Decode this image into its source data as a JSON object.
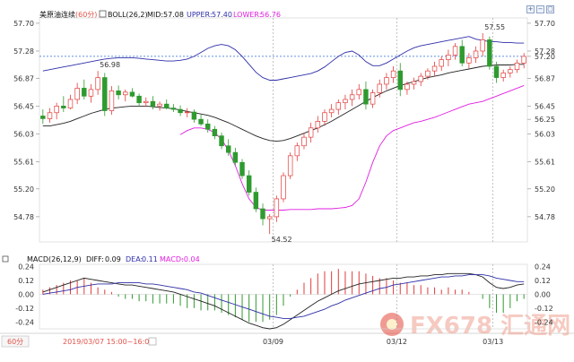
{
  "header": {
    "symbol": "美原油连续",
    "period": "(60分)",
    "indicator": "BOLL(26,2)",
    "mid_label": "MID:",
    "mid_value": "57.08",
    "upper_label": "UPPER:",
    "upper_value": "57.40",
    "lower_label": "LOWER:",
    "lower_value": "56.76"
  },
  "toolbar": {
    "buttons": [
      "+",
      "−",
      "▢"
    ]
  },
  "macd_header": {
    "name": "MACD(26,12,9)",
    "diff_label": "DIFF:",
    "diff_value": "0.09",
    "dea_label": "DEA:",
    "dea_value": "0.11",
    "macd_label": "MACD:",
    "macd_value": "-0.04"
  },
  "footer": {
    "period_tab": "60分",
    "crosshair_time": "2019/03/07 15:00~16:00",
    "dates": [
      "03/09",
      "03/12",
      "03/13"
    ]
  },
  "watermark": "FX678 汇通网",
  "colors": {
    "up": "#e33b3b",
    "down": "#2f9a2f",
    "mid": "#222222",
    "upper": "#2e2ea8",
    "lower": "#e01ee0",
    "diff": "#222222",
    "dea": "#2e2ea8",
    "accent": "#e2534a"
  },
  "chart_data": [
    {
      "type": "candlestick",
      "title": "美原油连续 (60分) BOLL(26,2)",
      "ylim": [
        54.4,
        57.78
      ],
      "y_ticks": [
        "57.70",
        "57.28",
        "56.87",
        "56.45",
        "56.03",
        "55.61",
        "55.20",
        "54.78"
      ],
      "right_labels": [
        "57.70",
        "57.28",
        "57.20",
        "56.87",
        "56.45",
        "56.25",
        "56.03",
        "55.61",
        "55.20",
        "54.78"
      ],
      "last_price": "57.20",
      "last_lower": "56.25",
      "annotations": [
        {
          "text": "56.98",
          "kind": "high"
        },
        {
          "text": "54.52",
          "kind": "low"
        },
        {
          "text": "57.55",
          "kind": "high"
        }
      ],
      "dates": [
        "03/09",
        "03/12",
        "03/13"
      ],
      "candles": [
        [
          56.3,
          56.4,
          56.18,
          56.26
        ],
        [
          56.26,
          56.42,
          56.2,
          56.35
        ],
        [
          56.35,
          56.5,
          56.25,
          56.45
        ],
        [
          56.45,
          56.6,
          56.36,
          56.42
        ],
        [
          56.42,
          56.62,
          56.4,
          56.55
        ],
        [
          56.55,
          56.8,
          56.48,
          56.72
        ],
        [
          56.72,
          56.85,
          56.55,
          56.6
        ],
        [
          56.6,
          56.78,
          56.5,
          56.7
        ],
        [
          56.7,
          56.98,
          56.62,
          56.88
        ],
        [
          56.88,
          56.95,
          56.3,
          56.38
        ],
        [
          56.38,
          56.75,
          56.32,
          56.68
        ],
        [
          56.68,
          56.76,
          56.55,
          56.62
        ],
        [
          56.62,
          56.7,
          56.52,
          56.66
        ],
        [
          56.66,
          56.72,
          56.58,
          56.6
        ],
        [
          56.6,
          56.64,
          56.45,
          56.5
        ],
        [
          56.5,
          56.58,
          56.44,
          56.52
        ],
        [
          56.52,
          56.6,
          56.4,
          56.45
        ],
        [
          56.45,
          56.52,
          56.38,
          56.48
        ],
        [
          56.48,
          56.55,
          56.4,
          56.42
        ],
        [
          56.42,
          56.48,
          56.36,
          56.4
        ],
        [
          56.4,
          56.46,
          56.3,
          56.35
        ],
        [
          56.35,
          56.42,
          56.28,
          56.36
        ],
        [
          56.36,
          56.4,
          56.2,
          56.25
        ],
        [
          56.25,
          56.32,
          56.15,
          56.18
        ],
        [
          56.18,
          56.25,
          56.05,
          56.1
        ],
        [
          56.1,
          56.15,
          55.95,
          56.0
        ],
        [
          56.0,
          56.05,
          55.8,
          55.85
        ],
        [
          55.85,
          55.95,
          55.7,
          55.75
        ],
        [
          55.75,
          55.82,
          55.55,
          55.6
        ],
        [
          55.6,
          55.65,
          55.35,
          55.4
        ],
        [
          55.4,
          55.48,
          55.1,
          55.15
        ],
        [
          55.15,
          55.22,
          54.85,
          54.9
        ],
        [
          54.9,
          54.98,
          54.65,
          54.75
        ],
        [
          54.75,
          54.82,
          54.52,
          54.78
        ],
        [
          54.78,
          55.1,
          54.7,
          55.05
        ],
        [
          55.05,
          55.45,
          55.0,
          55.4
        ],
        [
          55.4,
          55.75,
          55.35,
          55.7
        ],
        [
          55.7,
          55.9,
          55.62,
          55.85
        ],
        [
          55.85,
          56.05,
          55.8,
          55.98
        ],
        [
          55.98,
          56.2,
          55.9,
          56.12
        ],
        [
          56.12,
          56.3,
          56.05,
          56.22
        ],
        [
          56.22,
          56.4,
          56.15,
          56.35
        ],
        [
          56.35,
          56.48,
          56.28,
          56.4
        ],
        [
          56.4,
          56.55,
          56.32,
          56.5
        ],
        [
          56.5,
          56.62,
          56.4,
          56.55
        ],
        [
          56.55,
          56.7,
          56.45,
          56.62
        ],
        [
          56.62,
          56.78,
          56.55,
          56.7
        ],
        [
          56.7,
          56.82,
          56.4,
          56.48
        ],
        [
          56.48,
          56.7,
          56.42,
          56.65
        ],
        [
          56.65,
          56.85,
          56.58,
          56.78
        ],
        [
          56.78,
          56.95,
          56.7,
          56.88
        ],
        [
          56.88,
          57.05,
          56.8,
          56.98
        ],
        [
          56.98,
          57.1,
          56.6,
          56.7
        ],
        [
          56.7,
          56.82,
          56.62,
          56.78
        ],
        [
          56.78,
          56.88,
          56.7,
          56.82
        ],
        [
          56.82,
          56.95,
          56.75,
          56.9
        ],
        [
          56.9,
          57.02,
          56.85,
          56.98
        ],
        [
          56.98,
          57.12,
          56.9,
          57.05
        ],
        [
          57.05,
          57.2,
          56.98,
          57.15
        ],
        [
          57.15,
          57.3,
          57.05,
          57.22
        ],
        [
          57.22,
          57.4,
          57.15,
          57.35
        ],
        [
          57.35,
          57.45,
          57.05,
          57.1
        ],
        [
          57.1,
          57.25,
          57.02,
          57.18
        ],
        [
          57.18,
          57.35,
          57.1,
          57.28
        ],
        [
          57.28,
          57.55,
          57.2,
          57.45
        ],
        [
          57.45,
          57.5,
          57.0,
          57.05
        ],
        [
          57.05,
          57.12,
          56.8,
          56.88
        ],
        [
          56.88,
          57.0,
          56.82,
          56.95
        ],
        [
          56.95,
          57.05,
          56.88,
          57.0
        ],
        [
          57.0,
          57.15,
          56.95,
          57.1
        ],
        [
          57.1,
          57.25,
          57.02,
          57.2
        ]
      ],
      "mid_line": [
        56.15,
        56.15,
        56.17,
        56.19,
        56.22,
        56.26,
        56.3,
        56.34,
        56.37,
        56.4,
        56.42,
        56.43,
        56.44,
        56.45,
        56.45,
        56.45,
        56.44,
        56.43,
        56.42,
        56.41,
        56.39,
        56.37,
        56.35,
        56.33,
        56.31,
        56.28,
        56.24,
        56.2,
        56.15,
        56.1,
        56.05,
        56.0,
        55.96,
        55.93,
        55.92,
        55.93,
        55.96,
        56.0,
        56.04,
        56.08,
        56.12,
        56.17,
        56.22,
        56.28,
        56.34,
        56.4,
        56.46,
        56.52,
        56.58,
        56.63,
        56.68,
        56.72,
        56.76,
        56.79,
        56.82,
        56.85,
        56.88,
        56.9,
        56.92,
        56.95,
        56.97,
        56.99,
        57.01,
        57.03,
        57.05,
        57.06,
        57.07,
        57.07,
        57.07,
        57.08,
        57.08
      ],
      "upper_line": [
        56.98,
        57.0,
        57.02,
        57.04,
        57.06,
        57.08,
        57.1,
        57.12,
        57.14,
        57.16,
        57.17,
        57.18,
        57.18,
        57.18,
        57.17,
        57.16,
        57.15,
        57.14,
        57.13,
        57.13,
        57.14,
        57.16,
        57.2,
        57.26,
        57.32,
        57.36,
        57.38,
        57.36,
        57.3,
        57.2,
        57.08,
        56.96,
        56.88,
        56.84,
        56.84,
        56.86,
        56.88,
        56.9,
        56.92,
        56.94,
        56.98,
        57.04,
        57.12,
        57.2,
        57.26,
        57.28,
        57.22,
        57.12,
        57.06,
        57.06,
        57.1,
        57.16,
        57.22,
        57.28,
        57.33,
        57.36,
        57.38,
        57.4,
        57.42,
        57.44,
        57.46,
        57.48,
        57.5,
        57.46,
        57.44,
        57.42,
        57.42,
        57.41,
        57.41,
        57.4,
        57.4
      ],
      "lower_line": [
        null,
        null,
        null,
        null,
        null,
        null,
        null,
        null,
        null,
        null,
        null,
        null,
        null,
        null,
        null,
        null,
        null,
        null,
        null,
        null,
        56.02,
        56.08,
        56.12,
        56.12,
        56.1,
        56.05,
        55.95,
        55.78,
        55.55,
        55.28,
        55.05,
        54.92,
        54.88,
        54.88,
        54.88,
        54.88,
        54.89,
        54.89,
        54.89,
        54.89,
        54.9,
        54.9,
        54.9,
        54.91,
        54.92,
        54.95,
        55.05,
        55.3,
        55.6,
        55.85,
        56.0,
        56.08,
        56.12,
        56.16,
        56.2,
        56.22,
        56.25,
        56.28,
        56.32,
        56.36,
        56.4,
        56.44,
        56.48,
        56.5,
        56.52,
        56.56,
        56.6,
        56.64,
        56.68,
        56.72,
        56.76
      ]
    },
    {
      "type": "macd",
      "title": "MACD(26,12,9)",
      "ylim": [
        -0.3,
        0.26
      ],
      "y_ticks": [
        "0.24",
        "0.12",
        "0.00",
        "-0.12",
        "-0.24"
      ],
      "diff": [
        0.02,
        0.04,
        0.06,
        0.08,
        0.1,
        0.12,
        0.14,
        0.13,
        0.12,
        0.11,
        0.1,
        0.09,
        0.08,
        0.08,
        0.07,
        0.06,
        0.05,
        0.04,
        0.03,
        0.02,
        0.0,
        -0.02,
        -0.04,
        -0.06,
        -0.08,
        -0.1,
        -0.13,
        -0.16,
        -0.19,
        -0.22,
        -0.25,
        -0.27,
        -0.29,
        -0.3,
        -0.29,
        -0.26,
        -0.22,
        -0.18,
        -0.14,
        -0.1,
        -0.06,
        -0.03,
        0.0,
        0.03,
        0.05,
        0.07,
        0.09,
        0.1,
        0.11,
        0.12,
        0.13,
        0.14,
        0.14,
        0.15,
        0.15,
        0.16,
        0.16,
        0.17,
        0.17,
        0.18,
        0.18,
        0.18,
        0.18,
        0.17,
        0.15,
        0.1,
        0.06,
        0.05,
        0.06,
        0.08,
        0.09
      ],
      "dea": [
        0.0,
        0.01,
        0.02,
        0.03,
        0.04,
        0.06,
        0.07,
        0.08,
        0.09,
        0.09,
        0.09,
        0.1,
        0.1,
        0.1,
        0.1,
        0.09,
        0.09,
        0.08,
        0.07,
        0.06,
        0.05,
        0.04,
        0.02,
        0.01,
        -0.01,
        -0.03,
        -0.05,
        -0.07,
        -0.09,
        -0.11,
        -0.13,
        -0.15,
        -0.17,
        -0.19,
        -0.2,
        -0.21,
        -0.21,
        -0.2,
        -0.19,
        -0.17,
        -0.15,
        -0.13,
        -0.1,
        -0.08,
        -0.05,
        -0.03,
        -0.01,
        0.01,
        0.03,
        0.05,
        0.06,
        0.08,
        0.09,
        0.1,
        0.11,
        0.12,
        0.13,
        0.14,
        0.15,
        0.15,
        0.16,
        0.16,
        0.17,
        0.17,
        0.17,
        0.16,
        0.14,
        0.13,
        0.12,
        0.11,
        0.11
      ],
      "macd": [
        0.04,
        0.06,
        0.08,
        0.1,
        0.12,
        0.12,
        0.14,
        0.1,
        0.06,
        0.04,
        0.02,
        -0.02,
        -0.04,
        -0.04,
        -0.06,
        -0.06,
        -0.08,
        -0.08,
        -0.08,
        -0.08,
        -0.1,
        -0.12,
        -0.12,
        -0.14,
        -0.14,
        -0.14,
        -0.16,
        -0.18,
        -0.2,
        -0.22,
        -0.24,
        -0.24,
        -0.24,
        -0.22,
        -0.18,
        -0.1,
        -0.02,
        0.04,
        0.1,
        0.14,
        0.18,
        0.2,
        0.2,
        0.22,
        0.2,
        0.2,
        0.2,
        0.18,
        0.16,
        0.14,
        0.14,
        0.12,
        0.1,
        0.1,
        0.08,
        0.08,
        0.06,
        0.06,
        0.04,
        0.06,
        0.04,
        0.04,
        0.02,
        0.0,
        -0.04,
        -0.12,
        -0.16,
        -0.16,
        -0.12,
        -0.06,
        -0.04
      ]
    }
  ]
}
